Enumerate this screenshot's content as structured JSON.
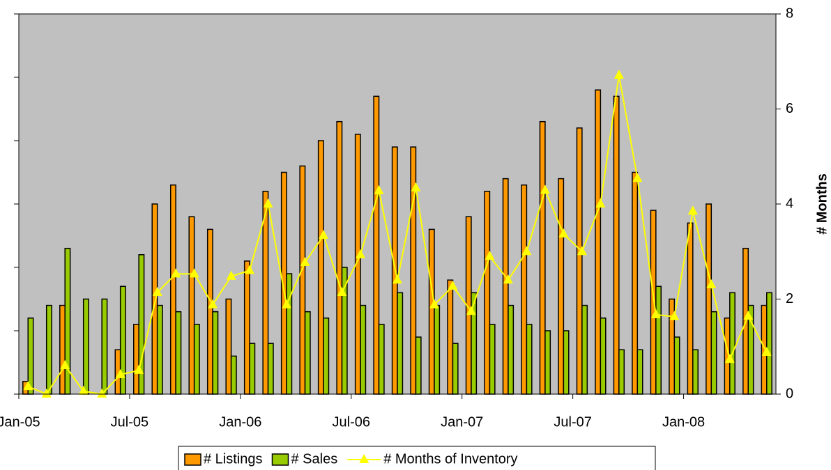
{
  "chart_data": {
    "type": "bar",
    "categories": [
      "Jan-05",
      null,
      null,
      null,
      null,
      null,
      "Jul-05",
      null,
      null,
      null,
      null,
      null,
      "Jan-06",
      null,
      null,
      null,
      null,
      null,
      "Jul-06",
      null,
      null,
      null,
      null,
      null,
      "Jan-07",
      null,
      null,
      null,
      null,
      null,
      "Jul-07",
      null,
      null,
      null,
      null,
      null,
      "Jan-08",
      null,
      null,
      null,
      null
    ],
    "series": [
      {
        "name": "# Listings",
        "type": "bar",
        "color": "#ff9900",
        "values": [
          2,
          0,
          14,
          0,
          0,
          7,
          11,
          30,
          33,
          28,
          26,
          15,
          21,
          32,
          35,
          36,
          40,
          43,
          41,
          47,
          39,
          39,
          26,
          18,
          28,
          32,
          34,
          33,
          43,
          34,
          42,
          48,
          47,
          35,
          29,
          15,
          27,
          30,
          12,
          23,
          14
        ]
      },
      {
        "name": "# Sales",
        "type": "bar",
        "color": "#99cc00",
        "values": [
          12,
          14,
          23,
          15,
          15,
          17,
          22,
          14,
          13,
          11,
          13,
          6,
          8,
          8,
          19,
          13,
          12,
          20,
          14,
          11,
          16,
          9,
          14,
          8,
          16,
          11,
          14,
          11,
          10,
          10,
          14,
          12,
          7,
          7,
          17,
          9,
          7,
          13,
          16,
          14,
          16
        ]
      },
      {
        "name": "# Months of Inventory",
        "type": "line",
        "axis": "y2",
        "color": "#ffff00",
        "values": [
          0.16,
          0,
          0.6,
          0.06,
          0,
          0.41,
          0.5,
          2.14,
          2.53,
          2.53,
          1.88,
          2.48,
          2.6,
          4.0,
          1.88,
          2.77,
          3.34,
          2.14,
          2.93,
          4.28,
          2.4,
          4.34,
          1.88,
          2.27,
          1.74,
          2.9,
          2.4,
          3.0,
          4.29,
          3.37,
          3.0,
          4.0,
          6.71,
          4.54,
          1.67,
          1.63,
          3.85,
          2.3,
          0.73,
          1.64,
          0.88
        ]
      }
    ],
    "ylim": [
      0,
      60
    ],
    "yticks": [
      0,
      10,
      20,
      30,
      40,
      50,
      60
    ],
    "y2lim": [
      0,
      8
    ],
    "y2ticks": [
      0,
      2,
      4,
      6,
      8
    ],
    "y2label": "# Months",
    "plot_background": "#c0c0c0",
    "grid": false,
    "legend": "bottom"
  }
}
